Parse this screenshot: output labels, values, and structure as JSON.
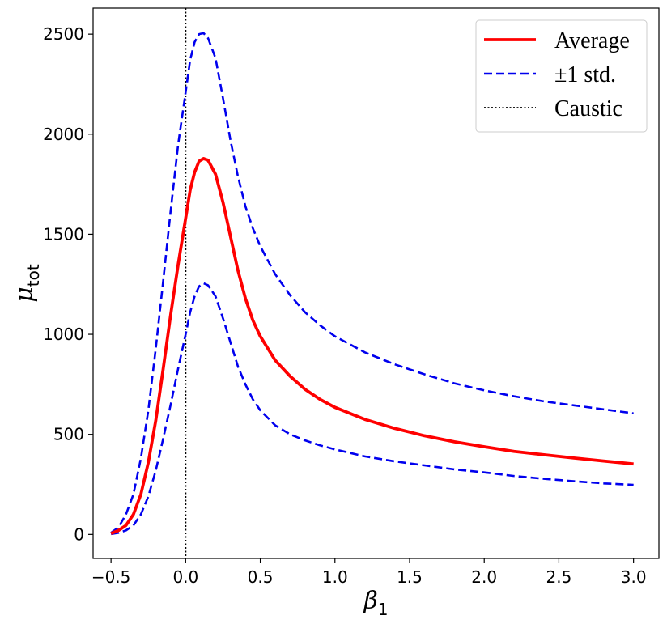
{
  "chart_data": {
    "type": "line",
    "title": "",
    "xlabel": "β",
    "xlabel_subscript": "1",
    "ylabel": "μ",
    "ylabel_subscript": "tot",
    "xlim": [
      -0.62,
      3.17
    ],
    "ylim": [
      -120,
      2630
    ],
    "xticks": [
      -0.5,
      0.0,
      0.5,
      1.0,
      1.5,
      2.0,
      2.5,
      3.0
    ],
    "xtick_labels": [
      "−0.5",
      "0.0",
      "0.5",
      "1.0",
      "1.5",
      "2.0",
      "2.5",
      "3.0"
    ],
    "yticks": [
      0,
      500,
      1000,
      1500,
      2000,
      2500
    ],
    "ytick_labels": [
      "0",
      "500",
      "1000",
      "1500",
      "2000",
      "2500"
    ],
    "grid": false,
    "legend_position": "top-right",
    "caustic_x": 0.0,
    "series": [
      {
        "name": "Average",
        "style": "solid",
        "color": "#ff0000",
        "x": [
          -0.5,
          -0.45,
          -0.4,
          -0.35,
          -0.3,
          -0.25,
          -0.2,
          -0.15,
          -0.1,
          -0.05,
          0.0,
          0.03,
          0.06,
          0.09,
          0.12,
          0.15,
          0.2,
          0.25,
          0.3,
          0.35,
          0.4,
          0.45,
          0.5,
          0.6,
          0.7,
          0.8,
          0.9,
          1.0,
          1.2,
          1.4,
          1.6,
          1.8,
          2.0,
          2.2,
          2.4,
          2.6,
          2.8,
          3.0
        ],
        "y": [
          5,
          20,
          45,
          100,
          200,
          360,
          570,
          830,
          1100,
          1350,
          1580,
          1720,
          1810,
          1865,
          1878,
          1870,
          1800,
          1660,
          1490,
          1320,
          1180,
          1070,
          990,
          870,
          790,
          725,
          675,
          635,
          575,
          530,
          493,
          463,
          438,
          415,
          398,
          382,
          367,
          352
        ]
      },
      {
        "name": "+1 std.",
        "style": "dashed",
        "color": "#0000ee",
        "x": [
          -0.5,
          -0.45,
          -0.4,
          -0.35,
          -0.3,
          -0.25,
          -0.2,
          -0.15,
          -0.1,
          -0.05,
          0.0,
          0.03,
          0.06,
          0.09,
          0.12,
          0.15,
          0.2,
          0.25,
          0.3,
          0.35,
          0.4,
          0.45,
          0.5,
          0.6,
          0.7,
          0.8,
          0.9,
          1.0,
          1.2,
          1.4,
          1.6,
          1.8,
          2.0,
          2.2,
          2.4,
          2.6,
          2.8,
          3.0
        ],
        "y": [
          8,
          35,
          100,
          200,
          380,
          620,
          930,
          1270,
          1620,
          1950,
          2210,
          2370,
          2460,
          2500,
          2505,
          2480,
          2380,
          2180,
          1970,
          1790,
          1640,
          1530,
          1440,
          1300,
          1195,
          1110,
          1045,
          990,
          910,
          850,
          800,
          755,
          720,
          690,
          665,
          645,
          625,
          605
        ]
      },
      {
        "name": "-1 std.",
        "style": "dashed",
        "color": "#0000ee",
        "x": [
          -0.5,
          -0.45,
          -0.4,
          -0.35,
          -0.3,
          -0.25,
          -0.2,
          -0.15,
          -0.1,
          -0.05,
          0.0,
          0.03,
          0.06,
          0.09,
          0.12,
          0.15,
          0.2,
          0.25,
          0.3,
          0.35,
          0.4,
          0.45,
          0.5,
          0.6,
          0.7,
          0.8,
          0.9,
          1.0,
          1.2,
          1.4,
          1.6,
          1.8,
          2.0,
          2.2,
          2.4,
          2.6,
          2.8,
          3.0
        ],
        "y": [
          2,
          8,
          20,
          45,
          100,
          190,
          320,
          480,
          650,
          830,
          1000,
          1110,
          1190,
          1240,
          1255,
          1245,
          1190,
          1080,
          960,
          840,
          750,
          675,
          620,
          545,
          500,
          470,
          445,
          425,
          390,
          365,
          345,
          325,
          310,
          292,
          278,
          266,
          255,
          248
        ]
      }
    ],
    "legend": [
      {
        "label": "Average",
        "style": "solid",
        "color": "#ff0000"
      },
      {
        "label": "±1 std.",
        "style": "dashed",
        "color": "#0000ee"
      },
      {
        "label": "Caustic",
        "style": "dotted",
        "color": "#000000"
      }
    ]
  }
}
